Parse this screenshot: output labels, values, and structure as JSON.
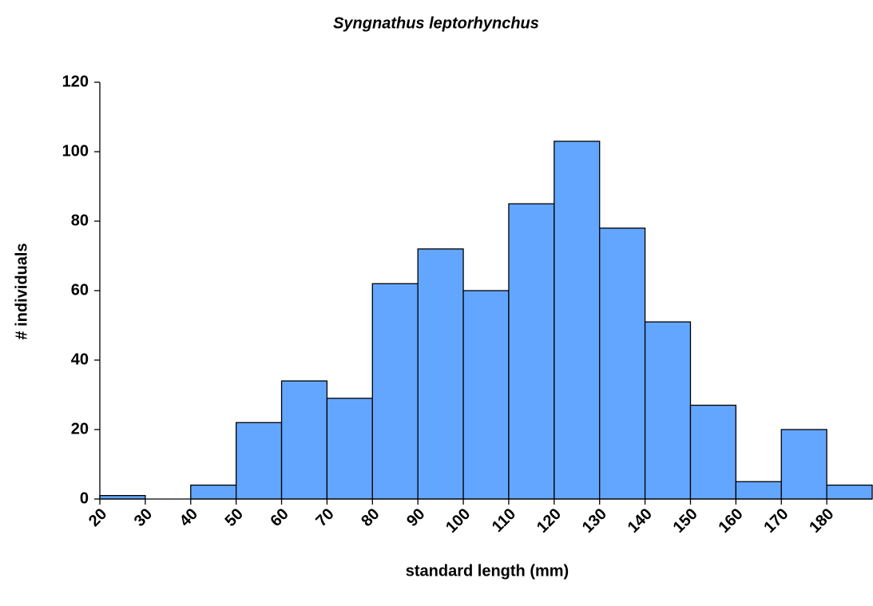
{
  "chart_data": {
    "type": "histogram",
    "title": "Syngnathus leptorhynchus",
    "x_label": "standard length (mm)",
    "y_label": "# individuals",
    "bins": [
      20,
      30,
      40,
      50,
      60,
      70,
      80,
      90,
      100,
      110,
      120,
      130,
      140,
      150,
      160,
      170,
      180,
      190
    ],
    "values": [
      1,
      0,
      4,
      22,
      34,
      29,
      62,
      72,
      60,
      85,
      103,
      78,
      51,
      27,
      5,
      20,
      4
    ],
    "color": "#63a6ff",
    "xlim": [
      20,
      190
    ],
    "xticks": [
      20,
      30,
      40,
      50,
      60,
      70,
      80,
      90,
      100,
      110,
      120,
      130,
      140,
      150,
      160,
      170,
      180
    ],
    "ylim": [
      0,
      120
    ],
    "yticks": [
      0,
      20,
      40,
      60,
      80,
      100,
      120
    ]
  }
}
